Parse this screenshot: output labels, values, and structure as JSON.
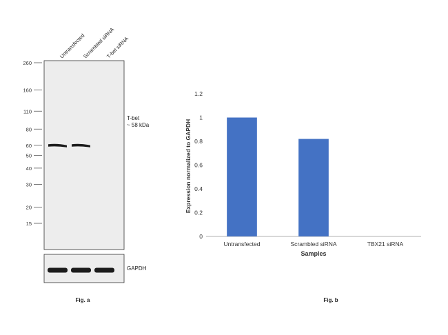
{
  "blot": {
    "lane_labels": [
      "Untransfected",
      "Scrambled siRNA",
      "T-bet siRNA"
    ],
    "mw_markers": [
      {
        "label": "260",
        "kda": 260
      },
      {
        "label": "160",
        "kda": 160
      },
      {
        "label": "110",
        "kda": 110
      },
      {
        "label": "80",
        "kda": 80
      },
      {
        "label": "60",
        "kda": 60
      },
      {
        "label": "50",
        "kda": 50
      },
      {
        "label": "40",
        "kda": 40
      },
      {
        "label": "30",
        "kda": 30
      },
      {
        "label": "20",
        "kda": 20
      },
      {
        "label": "15",
        "kda": 15
      }
    ],
    "target_label_line1": "T-bet",
    "target_label_line2": "~ 58 kDa",
    "target_band_lanes": [
      1,
      1,
      0
    ],
    "loading_control_label": "GAPDH",
    "loading_band_lanes": [
      1,
      1,
      1
    ],
    "caption": "Fig. a"
  },
  "chart_data": {
    "type": "bar",
    "title": "",
    "categories": [
      "Untransfected",
      "Scrambled siRNA",
      "TBX21 siRNA"
    ],
    "values": [
      1.0,
      0.82,
      0.0
    ],
    "xlabel": "Samples",
    "ylabel": "Expression normalized to GAPDH",
    "ylim": [
      0,
      1.2
    ],
    "yticks": [
      0,
      0.2,
      0.4,
      0.6,
      0.8,
      1,
      1.2
    ],
    "ytick_labels": [
      "0",
      "0.2",
      "0.4",
      "0.6",
      "0.8",
      "1",
      "1.2"
    ],
    "grid": false,
    "bar_color": "#4472C4",
    "caption": "Fig. b"
  },
  "colors": {
    "band": "#1c1c1c",
    "membrane": "#ededed",
    "axis": "#999999"
  }
}
